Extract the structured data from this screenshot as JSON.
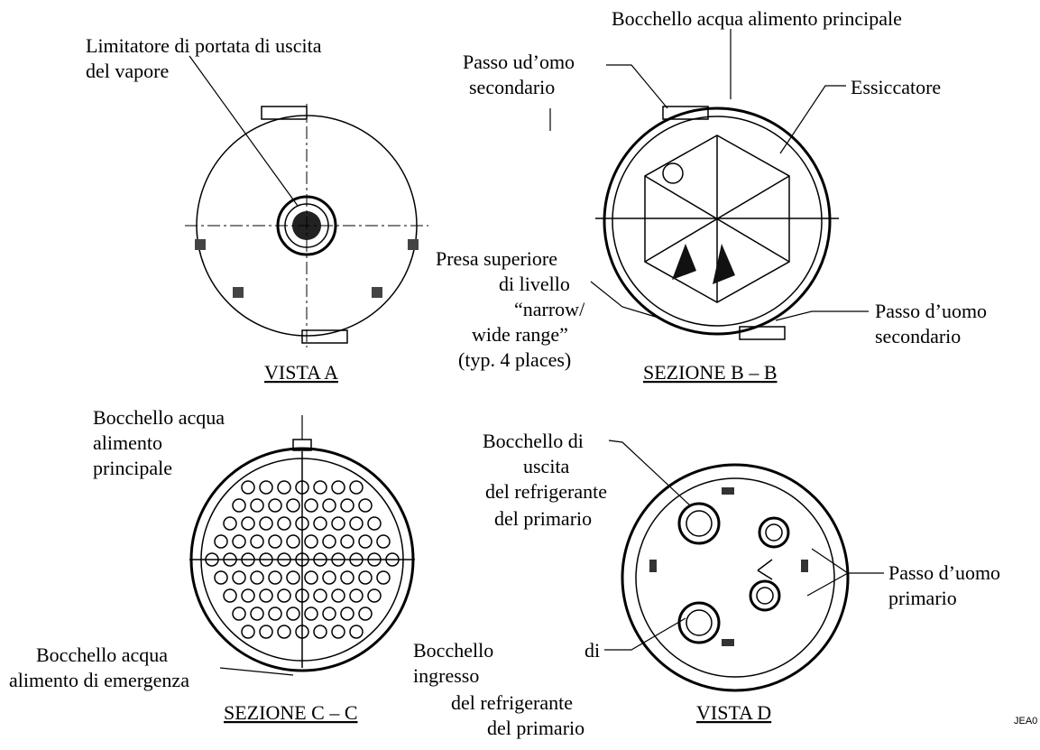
{
  "labels": [
    {
      "lines": [
        "Limitatore di portata di uscita",
        "del vapore"
      ]
    },
    {
      "lines": [
        "Bocchello acqua alimento principale"
      ]
    },
    {
      "lines": [
        "Passo ud’omo",
        "secondario"
      ]
    },
    {
      "lines": [
        "Essiccatore"
      ]
    },
    {
      "lines": [
        "Presa superiore",
        "di livello",
        "“narrow/",
        "wide range”",
        "(typ. 4 places)"
      ]
    },
    {
      "lines": [
        "Passo d’uomo",
        "secondario"
      ]
    },
    {
      "lines": [
        "Bocchello acqua",
        "alimento",
        "principale"
      ]
    },
    {
      "lines": [
        "Bocchello di",
        "uscita",
        "del refrigerante",
        "del primario"
      ]
    },
    {
      "lines": [
        "Passo d’uomo",
        "primario"
      ]
    },
    {
      "lines": [
        "Bocchello acqua",
        "alimento di emergenza"
      ]
    },
    {
      "lines": [
        "Bocchello",
        "ingresso",
        "del refrigerante",
        "del primario"
      ]
    },
    {
      "lines": [
        "di"
      ]
    }
  ],
  "captions": [
    "VISTA A",
    "SEZIONE B – B",
    "SEZIONE C – C",
    "VISTA D"
  ],
  "code": "JEA0"
}
